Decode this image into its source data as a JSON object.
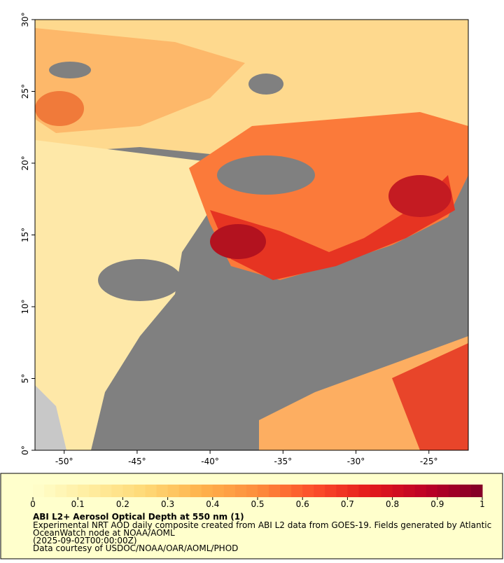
{
  "chart_data": {
    "type": "map",
    "xlim": [
      -52,
      -22.3
    ],
    "ylim": [
      0,
      30
    ],
    "xticks": [
      {
        "value": -50,
        "label": "-50°"
      },
      {
        "value": -45,
        "label": "-45°"
      },
      {
        "value": -40,
        "label": "-40°"
      },
      {
        "value": -35,
        "label": "-35°"
      },
      {
        "value": -30,
        "label": "-30°"
      },
      {
        "value": -25,
        "label": "-25°"
      }
    ],
    "yticks": [
      {
        "value": 0,
        "label": "0°"
      },
      {
        "value": 5,
        "label": "5°"
      },
      {
        "value": 10,
        "label": "10°"
      },
      {
        "value": 15,
        "label": "15°"
      },
      {
        "value": 20,
        "label": "20°"
      },
      {
        "value": 25,
        "label": "25°"
      },
      {
        "value": 30,
        "label": "30°"
      }
    ],
    "colorbar": {
      "lim": [
        0,
        1
      ],
      "ticks": [
        0,
        0.1,
        0.2,
        0.3,
        0.4,
        0.5,
        0.6,
        0.7,
        0.8,
        0.9,
        1
      ],
      "colormap": [
        "#ffffcc",
        "#ffeda0",
        "#fed976",
        "#feb24c",
        "#fd8d3c",
        "#fc4e2a",
        "#e31a1c",
        "#bd0026",
        "#800026"
      ]
    },
    "title": "ABI L2+ Aerosol Optical Depth at 550 nm (1)",
    "notes": [
      "Experimental NRT AOD daily composite created from ABI L2 data from GOES-19. Fields generated by Atlantic",
      "OceanWatch node at NOAA/AOML",
      "(2025-09-02T00:00:00Z)",
      "Data courtesy of USDOC/NOAA/OAR/AOML/PHOD"
    ]
  }
}
